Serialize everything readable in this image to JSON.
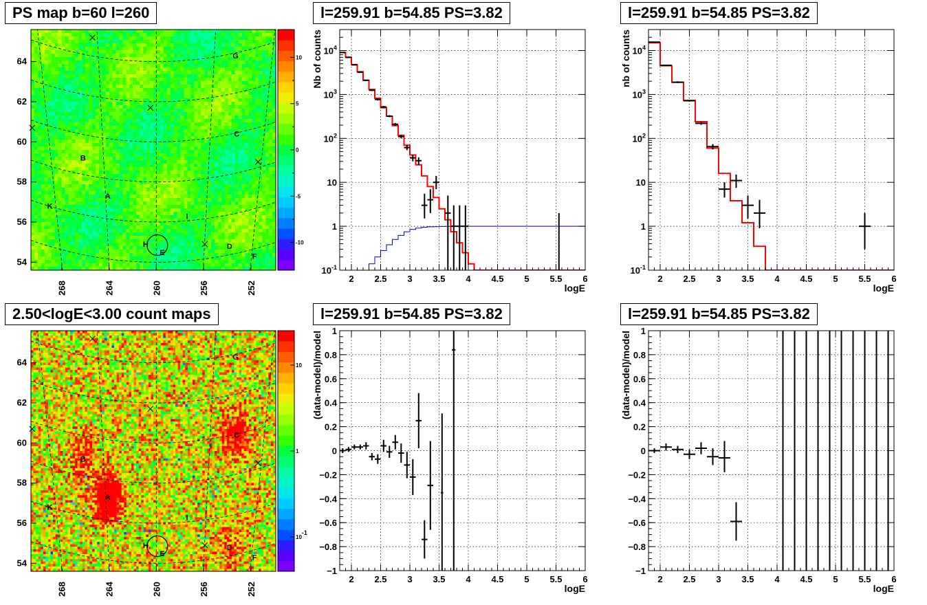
{
  "panels": {
    "ps_map_title": "PS map b=60 l=260",
    "count_map_title": "2.50<logE<3.00 count maps",
    "spec1_title": "l=259.91 b=54.85 PS=3.82",
    "spec2_title": "l=259.91 b=54.85 PS=3.82",
    "res1_title": "l=259.91 b=54.85 PS=3.82",
    "res2_title": "l=259.91 b=54.85 PS=3.82"
  },
  "axis_labels": {
    "logE": "logE",
    "Nb_counts": "Nb of counts",
    "nb_counts": "nb of counts",
    "residual": "(data-model)/model"
  },
  "map_axes": {
    "lat_ticks": [
      "64",
      "62",
      "60",
      "58",
      "56",
      "54"
    ],
    "lat_values": [
      64,
      62,
      60,
      58,
      56,
      54
    ],
    "lon_ticks": [
      "268",
      "264",
      "260",
      "256",
      "252"
    ],
    "lon_values": [
      268,
      264,
      260,
      256,
      252
    ],
    "lat_range": [
      53.6,
      65.6
    ],
    "lon_range": [
      270.6,
      249.9
    ]
  },
  "source_labels": [
    {
      "name": "G",
      "l": 253.3,
      "b": 64.3
    },
    {
      "name": "C",
      "l": 253.2,
      "b": 60.4
    },
    {
      "name": "B",
      "l": 266.2,
      "b": 59.2
    },
    {
      "name": "A",
      "l": 264.1,
      "b": 57.3
    },
    {
      "name": "K",
      "l": 269.0,
      "b": 56.8
    },
    {
      "name": "I",
      "l": 257.4,
      "b": 56.3
    },
    {
      "name": "H",
      "l": 260.9,
      "b": 54.9
    },
    {
      "name": "E",
      "l": 259.5,
      "b": 54.5
    },
    {
      "name": "D",
      "l": 253.8,
      "b": 54.8
    },
    {
      "name": "F",
      "l": 251.7,
      "b": 54.3
    }
  ],
  "crosses": [
    {
      "l": 265.4,
      "b": 65.2
    },
    {
      "l": 260.5,
      "b": 61.7
    },
    {
      "l": 270.5,
      "b": 60.7
    },
    {
      "l": 251.4,
      "b": 59.0
    },
    {
      "l": 255.9,
      "b": 54.9
    }
  ],
  "ps_circle": {
    "l": 259.91,
    "b": 54.85
  },
  "ps_palette": {
    "ticks": [
      "10",
      "5",
      "0",
      "-5",
      "-10"
    ],
    "tick_values": [
      10,
      5,
      0,
      -5,
      -10
    ],
    "range": [
      -13,
      13
    ],
    "colors": [
      "#7a00ff",
      "#5a00ff",
      "#2c1dff",
      "#0050ff",
      "#0080ff",
      "#00a8ff",
      "#00ccff",
      "#00e5ee",
      "#00f5c8",
      "#00ffa0",
      "#00ff70",
      "#00ff40",
      "#33ff00",
      "#66ff00",
      "#99ff00",
      "#c8ff00",
      "#eeee00",
      "#ffd200",
      "#ffb000",
      "#ff8800",
      "#ff5c00",
      "#ff3000",
      "#ff0000"
    ]
  },
  "count_palette": {
    "ticks": [
      "10",
      "1",
      "10^-1"
    ],
    "tick_values": [
      10,
      1,
      0.1
    ],
    "log_range": [
      -1.4,
      1.4
    ],
    "colors": [
      "#7a00ff",
      "#5a00ff",
      "#2c1dff",
      "#0050ff",
      "#0080ff",
      "#00a8ff",
      "#00ccff",
      "#00e5ee",
      "#00f5c8",
      "#00ffa0",
      "#00ff70",
      "#00ff40",
      "#33ff00",
      "#66ff00",
      "#99ff00",
      "#c8ff00",
      "#eeee00",
      "#ffd200",
      "#ffb000",
      "#ff8800",
      "#ff5c00",
      "#ff3000",
      "#ff0000"
    ]
  },
  "palette_exponent": "-1",
  "colors": {
    "data": "#000000",
    "model": "#ff0000",
    "acceptance": "#0000cc",
    "frame": "#000000",
    "grid": "#000000"
  },
  "chart_data": [
    {
      "type": "heatmap",
      "id": "ps_map",
      "title": "PS map b=60 l=260",
      "xlabel": "",
      "ylabel": "",
      "xlim": [
        270.6,
        249.9
      ],
      "ylim": [
        53.6,
        65.6
      ],
      "value_range": [
        -13,
        13
      ],
      "typical_value": 1
    },
    {
      "type": "heatmap",
      "id": "count_map",
      "title": "2.50<logE<3.00 count maps",
      "xlabel": "",
      "ylabel": "",
      "xlim": [
        270.6,
        249.9
      ],
      "ylim": [
        53.6,
        65.6
      ],
      "value_scale": "log",
      "hotspots": [
        {
          "l": 264.1,
          "b": 57.3,
          "strength": 2.5
        },
        {
          "l": 253.2,
          "b": 60.4,
          "strength": 1.5
        },
        {
          "l": 266.2,
          "b": 59.2,
          "strength": 1.0
        },
        {
          "l": 253.8,
          "b": 54.8,
          "strength": 0.8
        }
      ]
    },
    {
      "type": "line",
      "id": "spec1",
      "title": "l=259.91 b=54.85 PS=3.82",
      "xlabel": "logE",
      "ylabel": "Nb of counts",
      "xlim": [
        1.8,
        6
      ],
      "ylim": [
        0.1,
        30000
      ],
      "yscale": "log",
      "grid": true,
      "xticks": [
        "2",
        "2.5",
        "3",
        "3.5",
        "4",
        "4.5",
        "5",
        "5.5",
        "6"
      ],
      "xtick_values": [
        2,
        2.5,
        3,
        3.5,
        4,
        4.5,
        5,
        5.5,
        6
      ],
      "yticks": [
        "10^-1",
        "1",
        "10",
        "10^2",
        "10^3",
        "10^4"
      ],
      "ytick_values": [
        0.1,
        1,
        10,
        100,
        1000,
        10000
      ],
      "model_bin_width": 0.1,
      "model": [
        9000,
        7000,
        4800,
        3300,
        2100,
        1300,
        820,
        500,
        320,
        195,
        118,
        70,
        42,
        25,
        14,
        8,
        4.5,
        2.5,
        1.4,
        0.75,
        0.42,
        0.25,
        0.14,
        0.1
      ],
      "acceptance_bin_width": 0.1,
      "acceptance": [
        0.1,
        0.1,
        0.1,
        0.1,
        0.1,
        0.14,
        0.2,
        0.28,
        0.38,
        0.5,
        0.62,
        0.75,
        0.85,
        0.91,
        0.95,
        0.97,
        0.98,
        0.99,
        0.995,
        1,
        1,
        1,
        1,
        1,
        1,
        1,
        1,
        1,
        1,
        1,
        1,
        1,
        1,
        1,
        1,
        1,
        1,
        1,
        1,
        1,
        1,
        1
      ],
      "data": [
        {
          "x": 1.85,
          "y": 9000,
          "ylo": 8800,
          "yhi": 9200,
          "xerr": 0.05
        },
        {
          "x": 1.95,
          "y": 7000,
          "ylo": 6850,
          "yhi": 7150,
          "xerr": 0.05
        },
        {
          "x": 2.05,
          "y": 4700,
          "ylo": 4580,
          "yhi": 4820,
          "xerr": 0.05
        },
        {
          "x": 2.15,
          "y": 3200,
          "ylo": 3100,
          "yhi": 3300,
          "xerr": 0.05
        },
        {
          "x": 2.25,
          "y": 2100,
          "ylo": 2020,
          "yhi": 2180,
          "xerr": 0.05
        },
        {
          "x": 2.35,
          "y": 1250,
          "ylo": 1190,
          "yhi": 1310,
          "xerr": 0.05
        },
        {
          "x": 2.45,
          "y": 770,
          "ylo": 728,
          "yhi": 812,
          "xerr": 0.05
        },
        {
          "x": 2.55,
          "y": 520,
          "ylo": 490,
          "yhi": 550,
          "xerr": 0.05
        },
        {
          "x": 2.65,
          "y": 320,
          "ylo": 302,
          "yhi": 338,
          "xerr": 0.05
        },
        {
          "x": 2.75,
          "y": 210,
          "ylo": 196,
          "yhi": 224,
          "xerr": 0.05
        },
        {
          "x": 2.85,
          "y": 110,
          "ylo": 100,
          "yhi": 120,
          "xerr": 0.05
        },
        {
          "x": 2.95,
          "y": 62,
          "ylo": 54,
          "yhi": 70,
          "xerr": 0.05
        },
        {
          "x": 3.05,
          "y": 36,
          "ylo": 30,
          "yhi": 42,
          "xerr": 0.05
        },
        {
          "x": 3.15,
          "y": 31,
          "ylo": 25,
          "yhi": 37,
          "xerr": 0.05
        },
        {
          "x": 3.25,
          "y": 3,
          "ylo": 1.5,
          "yhi": 5.5,
          "xerr": 0.05
        },
        {
          "x": 3.35,
          "y": 4,
          "ylo": 2,
          "yhi": 7,
          "xerr": 0.05
        },
        {
          "x": 3.45,
          "y": 10,
          "ylo": 7,
          "yhi": 14,
          "xerr": 0.05
        },
        {
          "x": 3.65,
          "y": 2,
          "ylo": 0.1,
          "yhi": 5,
          "xerr": 0.05
        },
        {
          "x": 3.75,
          "y": 1,
          "ylo": 0.1,
          "yhi": 3,
          "xerr": 0.05
        },
        {
          "x": 3.85,
          "y": 1,
          "ylo": 0.1,
          "yhi": 3,
          "xerr": 0.05
        },
        {
          "x": 3.95,
          "y": 1,
          "ylo": 0.1,
          "yhi": 3,
          "xerr": 0.05
        },
        {
          "x": 5.55,
          "y": 1,
          "ylo": 0.1,
          "yhi": 2,
          "xerr": 0.01
        }
      ]
    },
    {
      "type": "line",
      "id": "spec2",
      "title": "l=259.91 b=54.85 PS=3.82",
      "xlabel": "logE",
      "ylabel": "nb of counts",
      "xlim": [
        1.8,
        6
      ],
      "ylim": [
        0.1,
        30000
      ],
      "yscale": "log",
      "grid": true,
      "xticks": [
        "2",
        "2.5",
        "3",
        "3.5",
        "4",
        "4.5",
        "5",
        "5.5",
        "6"
      ],
      "xtick_values": [
        2,
        2.5,
        3,
        3.5,
        4,
        4.5,
        5,
        5.5,
        6
      ],
      "yticks": [
        "10^-1",
        "1",
        "10",
        "10^2",
        "10^3",
        "10^4"
      ],
      "ytick_values": [
        0.1,
        1,
        10,
        100,
        1000,
        10000
      ],
      "model_bin_width": 0.2,
      "model": [
        15000,
        4500,
        1900,
        730,
        240,
        60,
        16,
        3.8,
        1.2,
        0.35,
        0.1
      ],
      "data": [
        {
          "x": 1.9,
          "y": 15500,
          "ylo": 15100,
          "yhi": 15900,
          "xerr": 0.1
        },
        {
          "x": 2.1,
          "y": 4600,
          "ylo": 4450,
          "yhi": 4750,
          "xerr": 0.1
        },
        {
          "x": 2.3,
          "y": 1900,
          "ylo": 1810,
          "yhi": 1990,
          "xerr": 0.1
        },
        {
          "x": 2.5,
          "y": 720,
          "ylo": 685,
          "yhi": 755,
          "xerr": 0.1
        },
        {
          "x": 2.7,
          "y": 220,
          "ylo": 204,
          "yhi": 236,
          "xerr": 0.1
        },
        {
          "x": 2.9,
          "y": 65,
          "ylo": 56,
          "yhi": 74,
          "xerr": 0.1
        },
        {
          "x": 3.1,
          "y": 7,
          "ylo": 4.5,
          "yhi": 10,
          "xerr": 0.1
        },
        {
          "x": 3.3,
          "y": 11,
          "ylo": 7.5,
          "yhi": 15,
          "xerr": 0.1
        },
        {
          "x": 3.5,
          "y": 3,
          "ylo": 1.5,
          "yhi": 5,
          "xerr": 0.1
        },
        {
          "x": 3.7,
          "y": 2,
          "ylo": 0.9,
          "yhi": 4,
          "xerr": 0.1
        },
        {
          "x": 5.5,
          "y": 1,
          "ylo": 0.3,
          "yhi": 2,
          "xerr": 0.1
        }
      ]
    },
    {
      "type": "scatter",
      "id": "res1",
      "title": "l=259.91 b=54.85 PS=3.82",
      "xlabel": "logE",
      "ylabel": "(data-model)/model",
      "xlim": [
        1.8,
        6
      ],
      "ylim": [
        -1,
        1
      ],
      "grid": true,
      "xticks": [
        "2",
        "2.5",
        "3",
        "3.5",
        "4",
        "4.5",
        "5",
        "5.5",
        "6"
      ],
      "xtick_values": [
        2,
        2.5,
        3,
        3.5,
        4,
        4.5,
        5,
        5.5,
        6
      ],
      "yticks": [
        "−1",
        "−0.8",
        "−0.6",
        "−0.4",
        "−0.2",
        "0",
        "0.2",
        "0.4",
        "0.6",
        "0.8",
        "1"
      ],
      "ytick_values": [
        -1,
        -0.8,
        -0.6,
        -0.4,
        -0.2,
        0,
        0.2,
        0.4,
        0.6,
        0.8,
        1
      ],
      "data": [
        {
          "x": 1.85,
          "y": 0,
          "ylo": -0.02,
          "yhi": 0.02,
          "xerr": 0.05
        },
        {
          "x": 1.95,
          "y": 0.01,
          "ylo": -0.01,
          "yhi": 0.03,
          "xerr": 0.05
        },
        {
          "x": 2.05,
          "y": 0.03,
          "ylo": 0.01,
          "yhi": 0.05,
          "xerr": 0.05
        },
        {
          "x": 2.15,
          "y": 0.03,
          "ylo": 0.01,
          "yhi": 0.05,
          "xerr": 0.05
        },
        {
          "x": 2.25,
          "y": 0.04,
          "ylo": 0.01,
          "yhi": 0.07,
          "xerr": 0.05
        },
        {
          "x": 2.35,
          "y": -0.05,
          "ylo": -0.08,
          "yhi": -0.02,
          "xerr": 0.05
        },
        {
          "x": 2.45,
          "y": -0.07,
          "ylo": -0.11,
          "yhi": -0.03,
          "xerr": 0.05
        },
        {
          "x": 2.55,
          "y": 0.04,
          "ylo": -0.01,
          "yhi": 0.09,
          "xerr": 0.05
        },
        {
          "x": 2.65,
          "y": -0.01,
          "ylo": -0.06,
          "yhi": 0.04,
          "xerr": 0.05
        },
        {
          "x": 2.75,
          "y": 0.07,
          "ylo": 0.01,
          "yhi": 0.13,
          "xerr": 0.05
        },
        {
          "x": 2.85,
          "y": -0.02,
          "ylo": -0.1,
          "yhi": 0.06,
          "xerr": 0.05
        },
        {
          "x": 2.95,
          "y": -0.12,
          "ylo": -0.23,
          "yhi": -0.01,
          "xerr": 0.05
        },
        {
          "x": 3.05,
          "y": -0.22,
          "ylo": -0.37,
          "yhi": -0.07,
          "xerr": 0.05
        },
        {
          "x": 3.15,
          "y": 0.25,
          "ylo": 0.02,
          "yhi": 0.48,
          "xerr": 0.05
        },
        {
          "x": 3.25,
          "y": -0.74,
          "ylo": -0.9,
          "yhi": -0.58,
          "xerr": 0.05
        },
        {
          "x": 3.35,
          "y": -0.29,
          "ylo": -0.66,
          "yhi": 0.08,
          "xerr": 0.05
        },
        {
          "x": 3.55,
          "y": -0.35,
          "ylo": -1,
          "yhi": 0.31,
          "xerr": 0.02
        },
        {
          "x": 3.75,
          "y": 0.84,
          "ylo": -1,
          "yhi": 1,
          "xerr": 0.03
        }
      ]
    },
    {
      "type": "scatter",
      "id": "res2",
      "title": "l=259.91 b=54.85 PS=3.82",
      "xlabel": "logE",
      "ylabel": "(data-model)/model",
      "xlim": [
        1.8,
        6
      ],
      "ylim": [
        -1,
        1
      ],
      "grid": true,
      "xticks": [
        "2",
        "2.5",
        "3",
        "3.5",
        "4",
        "4.5",
        "5",
        "5.5",
        "6"
      ],
      "xtick_values": [
        2,
        2.5,
        3,
        3.5,
        4,
        4.5,
        5,
        5.5,
        6
      ],
      "yticks": [
        "−1",
        "−0.8",
        "−0.6",
        "−0.4",
        "−0.2",
        "0",
        "0.2",
        "0.4",
        "0.6",
        "0.8",
        "1"
      ],
      "ytick_values": [
        -1,
        -0.8,
        -0.6,
        -0.4,
        -0.2,
        0,
        0.2,
        0.4,
        0.6,
        0.8,
        1
      ],
      "data": [
        {
          "x": 1.9,
          "y": 0,
          "ylo": -0.02,
          "yhi": 0.02,
          "xerr": 0.1
        },
        {
          "x": 2.1,
          "y": 0.03,
          "ylo": 0,
          "yhi": 0.06,
          "xerr": 0.1
        },
        {
          "x": 2.3,
          "y": 0.01,
          "ylo": -0.02,
          "yhi": 0.04,
          "xerr": 0.1
        },
        {
          "x": 2.5,
          "y": -0.03,
          "ylo": -0.07,
          "yhi": 0.01,
          "xerr": 0.1
        },
        {
          "x": 2.7,
          "y": 0.02,
          "ylo": -0.03,
          "yhi": 0.07,
          "xerr": 0.1
        },
        {
          "x": 2.9,
          "y": -0.05,
          "ylo": -0.12,
          "yhi": 0.02,
          "xerr": 0.1
        },
        {
          "x": 3.1,
          "y": -0.06,
          "ylo": -0.18,
          "yhi": 0.08,
          "xerr": 0.1
        },
        {
          "x": 3.3,
          "y": -0.59,
          "ylo": -0.75,
          "yhi": -0.43,
          "xerr": 0.1
        },
        {
          "x": 4.1,
          "y": 1,
          "ylo": -1,
          "yhi": 1,
          "xerr": 0
        },
        {
          "x": 4.3,
          "y": 1,
          "ylo": -1,
          "yhi": 1,
          "xerr": 0
        },
        {
          "x": 4.5,
          "y": 1,
          "ylo": -1,
          "yhi": 1,
          "xerr": 0
        },
        {
          "x": 4.7,
          "y": 1,
          "ylo": -1,
          "yhi": 1,
          "xerr": 0
        },
        {
          "x": 4.9,
          "y": 1,
          "ylo": -1,
          "yhi": 1,
          "xerr": 0
        },
        {
          "x": 5.1,
          "y": 1,
          "ylo": -1,
          "yhi": 1,
          "xerr": 0
        },
        {
          "x": 5.3,
          "y": 1,
          "ylo": -1,
          "yhi": 1,
          "xerr": 0
        },
        {
          "x": 5.5,
          "y": 1,
          "ylo": -1,
          "yhi": 1,
          "xerr": 0
        },
        {
          "x": 5.7,
          "y": 1,
          "ylo": -1,
          "yhi": 1,
          "xerr": 0
        },
        {
          "x": 5.9,
          "y": 1,
          "ylo": -1,
          "yhi": 1,
          "xerr": 0
        }
      ]
    }
  ]
}
